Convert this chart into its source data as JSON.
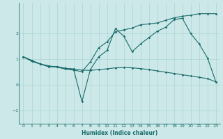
{
  "xlabel": "Humidex (Indice chaleur)",
  "background_color": "#cce8e8",
  "line_color": "#1a6b6b",
  "grid_color": "#aad4d4",
  "xlim": [
    -0.5,
    23.5
  ],
  "ylim": [
    -1.5,
    3.2
  ],
  "yticks": [
    -1,
    0,
    1,
    2
  ],
  "xticks": [
    0,
    1,
    2,
    3,
    4,
    5,
    6,
    7,
    8,
    9,
    10,
    11,
    12,
    13,
    14,
    15,
    16,
    17,
    18,
    19,
    20,
    21,
    22,
    23
  ],
  "line1_x": [
    0,
    1,
    2,
    3,
    4,
    5,
    6,
    7,
    8,
    9,
    10,
    11,
    12,
    13,
    14,
    15,
    16,
    17,
    18,
    19,
    20,
    21,
    22,
    23
  ],
  "line1_y": [
    1.1,
    0.95,
    0.82,
    0.72,
    0.72,
    0.65,
    0.62,
    -0.65,
    0.6,
    1.1,
    1.35,
    2.2,
    1.9,
    1.3,
    1.6,
    1.85,
    2.1,
    2.25,
    2.55,
    2.6,
    2.0,
    1.6,
    1.05,
    0.12
  ],
  "line2_x": [
    0,
    1,
    2,
    3,
    4,
    5,
    6,
    7,
    8,
    9,
    10,
    11,
    12,
    13,
    14,
    15,
    16,
    17,
    18,
    19,
    20,
    21,
    22,
    23
  ],
  "line2_y": [
    1.1,
    0.92,
    0.82,
    0.75,
    0.7,
    0.65,
    0.62,
    0.58,
    0.57,
    0.6,
    0.63,
    0.67,
    0.68,
    0.67,
    0.64,
    0.6,
    0.55,
    0.5,
    0.45,
    0.4,
    0.35,
    0.3,
    0.25,
    0.12
  ],
  "line3_x": [
    0,
    2,
    3,
    4,
    5,
    6,
    7,
    8,
    9,
    10,
    11,
    12,
    13,
    14,
    15,
    16,
    17,
    18,
    19,
    20,
    21,
    22,
    23
  ],
  "line3_y": [
    1.1,
    0.82,
    0.72,
    0.7,
    0.62,
    0.58,
    0.52,
    0.9,
    1.45,
    1.68,
    2.08,
    2.15,
    2.22,
    2.35,
    2.38,
    2.42,
    2.52,
    2.62,
    2.68,
    2.72,
    2.78,
    2.78,
    2.78
  ]
}
